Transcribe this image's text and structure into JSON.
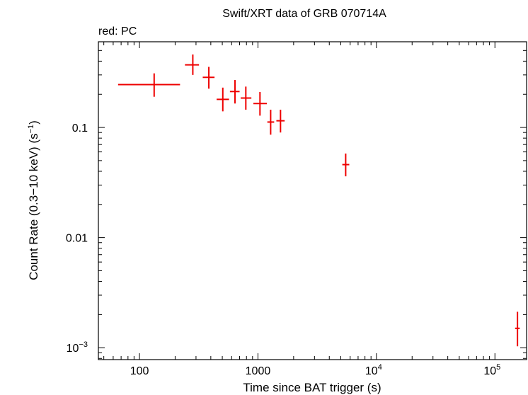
{
  "chart_data": {
    "type": "scatter",
    "title": "Swift/XRT data of GRB 070714A",
    "subtitle": "red: PC",
    "xlabel": "Time since BAT trigger (s)",
    "ylabel": "Count Rate (0.3−10 keV) (s",
    "ylabel_sup": "−1",
    "ylabel_end": ")",
    "x_scale": "log",
    "y_scale": "log",
    "xlim": [
      45,
      185000
    ],
    "ylim": [
      0.00078,
      0.6
    ],
    "x_ticks": [
      {
        "value": 100,
        "label": "100"
      },
      {
        "value": 1000,
        "label": "1000"
      },
      {
        "value": 10000,
        "label": "10",
        "sup": "4"
      },
      {
        "value": 100000,
        "label": "10",
        "sup": "5"
      }
    ],
    "y_ticks": [
      {
        "value": 0.1,
        "label": "0.1"
      },
      {
        "value": 0.01,
        "label": "0.01"
      },
      {
        "value": 0.001,
        "label": "10",
        "sup": "−3"
      }
    ],
    "grid": false,
    "series": [
      {
        "color": "#ee0000",
        "points": [
          {
            "x": 133,
            "xlo": 66,
            "xhi": 220,
            "y": 0.245,
            "ylo": 0.19,
            "yhi": 0.31
          },
          {
            "x": 282,
            "xlo": 242,
            "xhi": 318,
            "y": 0.37,
            "ylo": 0.3,
            "yhi": 0.46
          },
          {
            "x": 385,
            "xlo": 342,
            "xhi": 430,
            "y": 0.285,
            "ylo": 0.225,
            "yhi": 0.355
          },
          {
            "x": 505,
            "xlo": 448,
            "xhi": 570,
            "y": 0.18,
            "ylo": 0.14,
            "yhi": 0.23
          },
          {
            "x": 640,
            "xlo": 580,
            "xhi": 700,
            "y": 0.212,
            "ylo": 0.165,
            "yhi": 0.27
          },
          {
            "x": 790,
            "xlo": 715,
            "xhi": 880,
            "y": 0.185,
            "ylo": 0.145,
            "yhi": 0.235
          },
          {
            "x": 1040,
            "xlo": 915,
            "xhi": 1190,
            "y": 0.165,
            "ylo": 0.128,
            "yhi": 0.21
          },
          {
            "x": 1280,
            "xlo": 1200,
            "xhi": 1370,
            "y": 0.112,
            "ylo": 0.086,
            "yhi": 0.145
          },
          {
            "x": 1550,
            "xlo": 1430,
            "xhi": 1680,
            "y": 0.115,
            "ylo": 0.09,
            "yhi": 0.145
          },
          {
            "x": 5500,
            "xlo": 5150,
            "xhi": 5900,
            "y": 0.046,
            "ylo": 0.036,
            "yhi": 0.058
          },
          {
            "x": 155000,
            "xlo": 148000,
            "xhi": 162000,
            "y": 0.0015,
            "ylo": 0.00103,
            "yhi": 0.00212
          }
        ]
      }
    ]
  }
}
